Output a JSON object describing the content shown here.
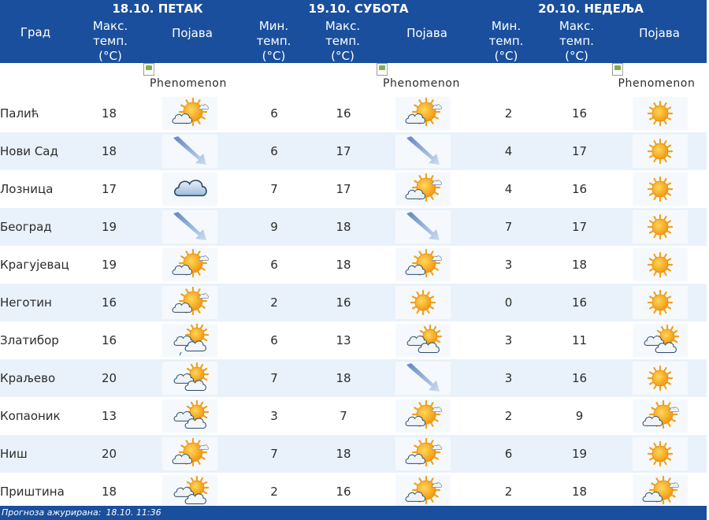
{
  "header": {
    "city_col": "Град",
    "days": [
      {
        "date": "18.10. ПЕТАК",
        "cols": [
          "Макс. темп. (°C)",
          "Појава"
        ]
      },
      {
        "date": "19.10. СУБОТА",
        "cols": [
          "Мин. темп. (°C)",
          "Макс. темп. (°C)",
          "Појава"
        ]
      },
      {
        "date": "20.10. НЕДЕЉА",
        "cols": [
          "Мин. темп. (°C)",
          "Макс. темп. (°C)",
          "Појава"
        ]
      }
    ],
    "labels": {
      "max_l1": "Макс.",
      "max_l2": "темп.",
      "max_l3": "(°C)",
      "min_l1": "Мин.",
      "min_l2": "темп.",
      "min_l3": "(°C)",
      "phen": "Појава"
    }
  },
  "phenomenon_alt": "Phenomenon",
  "rows": [
    {
      "city": "Палић",
      "d1_max": "18",
      "d1_icon": "sun-cloud-icon",
      "d2_min": "6",
      "d2_max": "16",
      "d2_icon": "sun-cloud-icon",
      "d3_min": "2",
      "d3_max": "16",
      "d3_icon": "sun-icon"
    },
    {
      "city": "Нови Сад",
      "d1_max": "18",
      "d1_icon": "wind-arrow-icon",
      "d2_min": "6",
      "d2_max": "17",
      "d2_icon": "wind-arrow-icon",
      "d3_min": "4",
      "d3_max": "17",
      "d3_icon": "sun-icon"
    },
    {
      "city": "Лозница",
      "d1_max": "17",
      "d1_icon": "cloud-icon",
      "d2_min": "7",
      "d2_max": "17",
      "d2_icon": "sun-cloud-icon",
      "d3_min": "4",
      "d3_max": "16",
      "d3_icon": "sun-icon"
    },
    {
      "city": "Београд",
      "d1_max": "19",
      "d1_icon": "wind-arrow-icon",
      "d2_min": "9",
      "d2_max": "18",
      "d2_icon": "wind-arrow-icon",
      "d3_min": "7",
      "d3_max": "17",
      "d3_icon": "sun-icon"
    },
    {
      "city": "Крагујевац",
      "d1_max": "19",
      "d1_icon": "sun-cloud-icon",
      "d2_min": "6",
      "d2_max": "18",
      "d2_icon": "sun-cloud-icon",
      "d3_min": "3",
      "d3_max": "18",
      "d3_icon": "sun-icon"
    },
    {
      "city": "Неготин",
      "d1_max": "16",
      "d1_icon": "sun-cloud-icon",
      "d2_min": "2",
      "d2_max": "16",
      "d2_icon": "sun-icon",
      "d3_min": "0",
      "d3_max": "16",
      "d3_icon": "sun-icon"
    },
    {
      "city": "Златибор",
      "d1_max": "16",
      "d1_icon": "cloud-sun-rain-icon",
      "d2_min": "6",
      "d2_max": "13",
      "d2_icon": "cloud-sun-icon",
      "d3_min": "3",
      "d3_max": "11",
      "d3_icon": "cloud-sun-icon"
    },
    {
      "city": "Краљево",
      "d1_max": "20",
      "d1_icon": "cloud-sun-icon",
      "d2_min": "7",
      "d2_max": "18",
      "d2_icon": "wind-arrow-icon",
      "d3_min": "3",
      "d3_max": "16",
      "d3_icon": "sun-icon"
    },
    {
      "city": "Копаоник",
      "d1_max": "13",
      "d1_icon": "cloud-sun-icon",
      "d2_min": "3",
      "d2_max": "7",
      "d2_icon": "sun-cloud-icon",
      "d3_min": "2",
      "d3_max": "9",
      "d3_icon": "sun-cloud-icon"
    },
    {
      "city": "Ниш",
      "d1_max": "20",
      "d1_icon": "sun-cloud-icon",
      "d2_min": "7",
      "d2_max": "18",
      "d2_icon": "sun-cloud-icon",
      "d3_min": "6",
      "d3_max": "19",
      "d3_icon": "sun-icon"
    },
    {
      "city": "Приштина",
      "d1_max": "18",
      "d1_icon": "cloud-sun-icon",
      "d2_min": "2",
      "d2_max": "16",
      "d2_icon": "sun-cloud-icon",
      "d3_min": "2",
      "d3_max": "18",
      "d3_icon": "sun-cloud-icon"
    }
  ],
  "footer": {
    "label": "Прогноза ажурирана:",
    "value": "18.10. 11:36"
  }
}
